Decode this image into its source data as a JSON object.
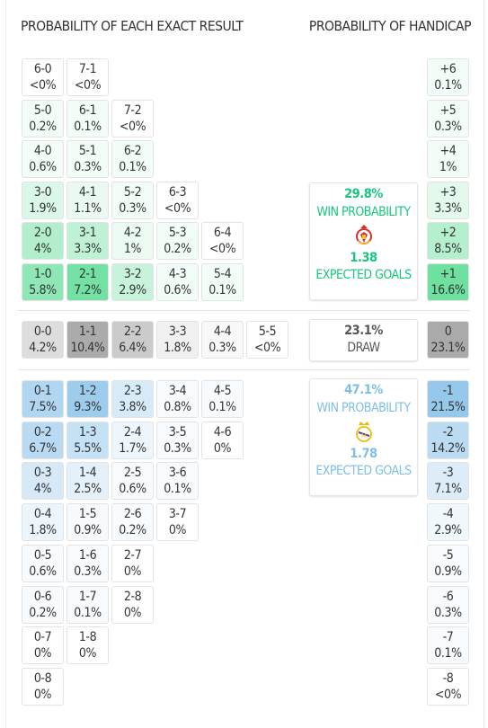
{
  "headers": {
    "exact_result": "PROBABILITY OF EACH EXACT RESULT",
    "handicap": "PROBABILITY OF HANDICAP"
  },
  "colors": {
    "home_accent": "#17c67d",
    "away_accent": "#7dbfe6",
    "draw_accent": "#555555"
  },
  "home": {
    "win_probability": "29.8%",
    "win_label": "WIN PROBABILITY",
    "expected_goals": "1.38",
    "expected_goals_label": "EXPECTED GOALS",
    "crest_icon": "benfica-crest-icon"
  },
  "draw": {
    "probability": "23.1%",
    "label": "DRAW"
  },
  "away": {
    "win_probability": "47.1%",
    "win_label": "WIN PROBABILITY",
    "expected_goals": "1.78",
    "expected_goals_label": "EXPECTED GOALS",
    "crest_icon": "real-madrid-crest-icon"
  },
  "home_rows": [
    [
      {
        "s": "6-0",
        "p": "<0%"
      },
      {
        "s": "7-1",
        "p": "<0%"
      }
    ],
    [
      {
        "s": "5-0",
        "p": "0.2%"
      },
      {
        "s": "6-1",
        "p": "0.1%"
      },
      {
        "s": "7-2",
        "p": "<0%"
      }
    ],
    [
      {
        "s": "4-0",
        "p": "0.6%"
      },
      {
        "s": "5-1",
        "p": "0.3%"
      },
      {
        "s": "6-2",
        "p": "0.1%"
      }
    ],
    [
      {
        "s": "3-0",
        "p": "1.9%"
      },
      {
        "s": "4-1",
        "p": "1.1%"
      },
      {
        "s": "5-2",
        "p": "0.3%"
      },
      {
        "s": "6-3",
        "p": "<0%"
      }
    ],
    [
      {
        "s": "2-0",
        "p": "4%"
      },
      {
        "s": "3-1",
        "p": "3.3%"
      },
      {
        "s": "4-2",
        "p": "1%"
      },
      {
        "s": "5-3",
        "p": "0.2%"
      },
      {
        "s": "6-4",
        "p": "<0%"
      }
    ],
    [
      {
        "s": "1-0",
        "p": "5.8%"
      },
      {
        "s": "2-1",
        "p": "7.2%"
      },
      {
        "s": "3-2",
        "p": "2.9%"
      },
      {
        "s": "4-3",
        "p": "0.6%"
      },
      {
        "s": "5-4",
        "p": "0.1%"
      }
    ]
  ],
  "draw_row": [
    {
      "s": "0-0",
      "p": "4.2%"
    },
    {
      "s": "1-1",
      "p": "10.4%"
    },
    {
      "s": "2-2",
      "p": "6.4%"
    },
    {
      "s": "3-3",
      "p": "1.8%"
    },
    {
      "s": "4-4",
      "p": "0.3%"
    },
    {
      "s": "5-5",
      "p": "<0%"
    }
  ],
  "away_rows": [
    [
      {
        "s": "0-1",
        "p": "7.5%"
      },
      {
        "s": "1-2",
        "p": "9.3%"
      },
      {
        "s": "2-3",
        "p": "3.8%"
      },
      {
        "s": "3-4",
        "p": "0.8%"
      },
      {
        "s": "4-5",
        "p": "0.1%"
      }
    ],
    [
      {
        "s": "0-2",
        "p": "6.7%"
      },
      {
        "s": "1-3",
        "p": "5.5%"
      },
      {
        "s": "2-4",
        "p": "1.7%"
      },
      {
        "s": "3-5",
        "p": "0.3%"
      },
      {
        "s": "4-6",
        "p": "0%"
      }
    ],
    [
      {
        "s": "0-3",
        "p": "4%"
      },
      {
        "s": "1-4",
        "p": "2.5%"
      },
      {
        "s": "2-5",
        "p": "0.6%"
      },
      {
        "s": "3-6",
        "p": "0.1%"
      }
    ],
    [
      {
        "s": "0-4",
        "p": "1.8%"
      },
      {
        "s": "1-5",
        "p": "0.9%"
      },
      {
        "s": "2-6",
        "p": "0.2%"
      },
      {
        "s": "3-7",
        "p": "0%"
      }
    ],
    [
      {
        "s": "0-5",
        "p": "0.6%"
      },
      {
        "s": "1-6",
        "p": "0.3%"
      },
      {
        "s": "2-7",
        "p": "0%"
      }
    ],
    [
      {
        "s": "0-6",
        "p": "0.2%"
      },
      {
        "s": "1-7",
        "p": "0.1%"
      },
      {
        "s": "2-8",
        "p": "0%"
      }
    ],
    [
      {
        "s": "0-7",
        "p": "0%"
      },
      {
        "s": "1-8",
        "p": "0%"
      }
    ],
    [
      {
        "s": "0-8",
        "p": "0%"
      }
    ]
  ],
  "handicap_home": [
    {
      "s": "+6",
      "p": "0.1%"
    },
    {
      "s": "+5",
      "p": "0.3%"
    },
    {
      "s": "+4",
      "p": "1%"
    },
    {
      "s": "+3",
      "p": "3.3%"
    },
    {
      "s": "+2",
      "p": "8.5%"
    },
    {
      "s": "+1",
      "p": "16.6%"
    }
  ],
  "handicap_draw": {
    "s": "0",
    "p": "23.1%"
  },
  "handicap_away": [
    {
      "s": "-1",
      "p": "21.5%"
    },
    {
      "s": "-2",
      "p": "14.2%"
    },
    {
      "s": "-3",
      "p": "7.1%"
    },
    {
      "s": "-4",
      "p": "2.9%"
    },
    {
      "s": "-5",
      "p": "0.9%"
    },
    {
      "s": "-6",
      "p": "0.3%"
    },
    {
      "s": "-7",
      "p": "0.1%"
    },
    {
      "s": "-8",
      "p": "<0%"
    }
  ]
}
